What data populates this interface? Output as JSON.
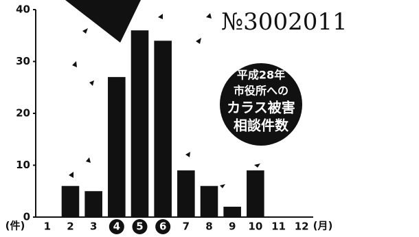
{
  "chart_data": {
    "type": "bar",
    "stamp": "№3002011",
    "annotation": [
      "平成28年",
      "市役所への",
      "カラス被害",
      "相談件数"
    ],
    "categories": [
      "1",
      "2",
      "3",
      "4",
      "5",
      "6",
      "7",
      "8",
      "9",
      "10",
      "11",
      "12"
    ],
    "values": [
      0,
      6,
      5,
      27,
      36,
      34,
      9,
      6,
      2,
      9,
      0,
      0
    ],
    "color": "#111111",
    "highlighted_categories": [
      "4",
      "5",
      "6"
    ],
    "y_unit": "(件)",
    "x_unit": "(月)",
    "ylim": [
      0,
      40
    ],
    "yticks": [
      0,
      10,
      20,
      30,
      40
    ],
    "grid": false
  }
}
